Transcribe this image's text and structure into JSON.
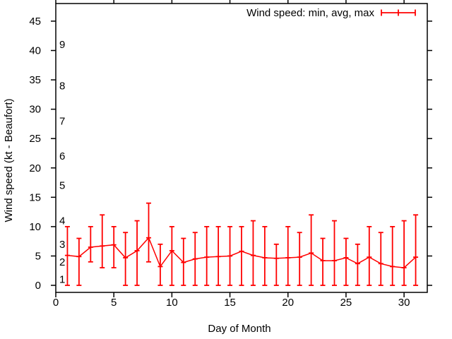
{
  "window": {
    "background": "#ffffff"
  },
  "chart_data": {
    "type": "line",
    "subtype": "error-bars-min-avg-max",
    "title": "",
    "xlabel": "Day of Month",
    "ylabel": "Wind speed (kt - Beaufort)",
    "legend_label": "Wind speed: min, avg, max",
    "legend_position": "top-right-inside",
    "grid": false,
    "series_color": "#ff0000",
    "axis_color": "#000000",
    "xlim": [
      0,
      32
    ],
    "ylim": [
      -1.2,
      48.0
    ],
    "x_ticks": [
      0,
      5,
      10,
      15,
      20,
      25,
      30
    ],
    "y_ticks": [
      0,
      5,
      10,
      15,
      20,
      25,
      30,
      35,
      40,
      45
    ],
    "beaufort_scale_labels": [
      {
        "label": "1",
        "kt": 1
      },
      {
        "label": "2",
        "kt": 4
      },
      {
        "label": "3",
        "kt": 7
      },
      {
        "label": "4",
        "kt": 11
      },
      {
        "label": "5",
        "kt": 17
      },
      {
        "label": "6",
        "kt": 22
      },
      {
        "label": "7",
        "kt": 28
      },
      {
        "label": "8",
        "kt": 34
      },
      {
        "label": "9",
        "kt": 41
      }
    ],
    "x": [
      1,
      2,
      3,
      4,
      5,
      6,
      7,
      8,
      9,
      10,
      11,
      12,
      13,
      14,
      15,
      16,
      17,
      18,
      19,
      20,
      21,
      22,
      23,
      24,
      25,
      26,
      27,
      28,
      29,
      30,
      31
    ],
    "series": [
      {
        "name": "min",
        "values": [
          0,
          0,
          4,
          3,
          3,
          0,
          0,
          4,
          0,
          0,
          0,
          0,
          0,
          0,
          0,
          0,
          0,
          0,
          0,
          0,
          0,
          0,
          0,
          0,
          0,
          0,
          0,
          0,
          0,
          0,
          0
        ]
      },
      {
        "name": "avg",
        "values": [
          5.1,
          4.9,
          6.5,
          6.7,
          6.9,
          4.7,
          5.9,
          8.1,
          3.2,
          5.9,
          3.9,
          4.5,
          4.8,
          4.9,
          5.0,
          5.8,
          5.1,
          4.7,
          4.6,
          4.7,
          4.8,
          5.5,
          4.2,
          4.2,
          4.7,
          3.7,
          4.8,
          3.7,
          3.2,
          3.0,
          4.8
        ]
      },
      {
        "name": "max",
        "values": [
          10,
          8,
          10,
          12,
          10,
          9,
          11,
          14,
          7,
          10,
          8,
          9,
          10,
          10,
          10,
          10,
          11,
          10,
          7,
          10,
          9,
          12,
          8,
          11,
          8,
          7,
          10,
          9,
          10,
          11,
          12
        ]
      }
    ]
  }
}
